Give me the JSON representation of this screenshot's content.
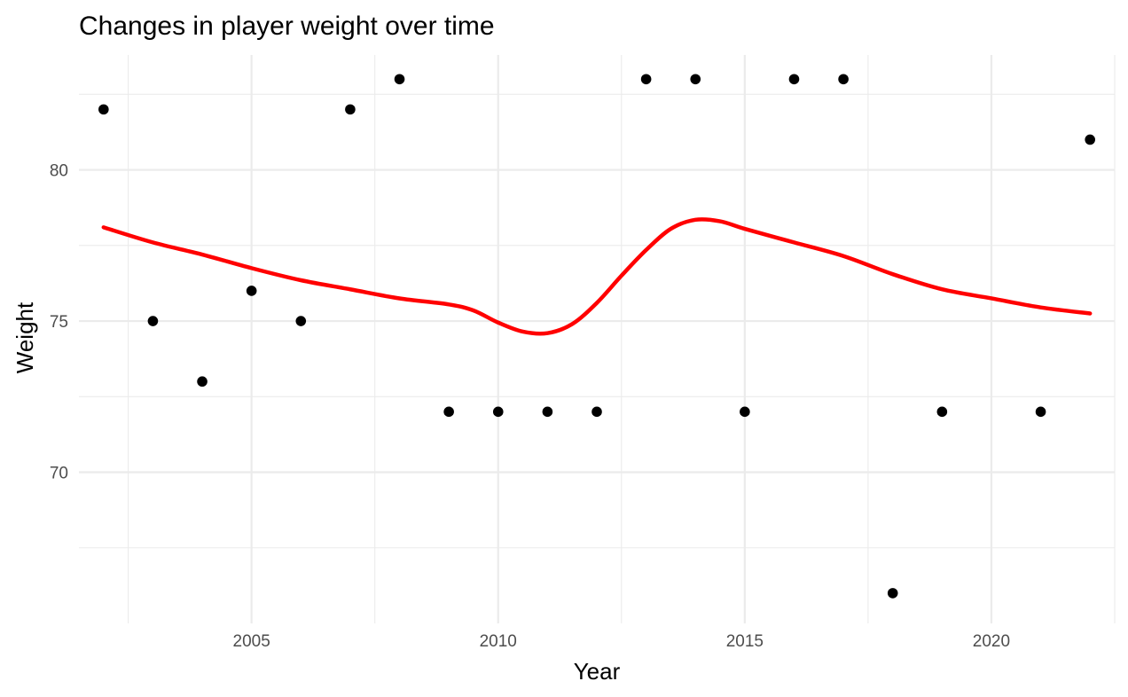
{
  "chart_data": {
    "type": "scatter",
    "title": "Changes in player weight over time",
    "xlabel": "Year",
    "ylabel": "Weight",
    "xlim": [
      2001.5,
      2022.5
    ],
    "ylim": [
      65.0,
      83.8
    ],
    "x_ticks": [
      2005,
      2010,
      2015,
      2020
    ],
    "y_ticks": [
      70,
      75,
      80
    ],
    "x_minor_ticks": [
      2002.5,
      2007.5,
      2012.5,
      2017.5,
      2022.5
    ],
    "y_minor_ticks": [
      67.5,
      72.5,
      77.5,
      82.5
    ],
    "grid": true,
    "point_color": "#000000",
    "points": [
      {
        "x": 2002,
        "y": 82
      },
      {
        "x": 2003,
        "y": 75
      },
      {
        "x": 2004,
        "y": 73
      },
      {
        "x": 2005,
        "y": 76
      },
      {
        "x": 2006,
        "y": 75
      },
      {
        "x": 2007,
        "y": 82
      },
      {
        "x": 2008,
        "y": 83
      },
      {
        "x": 2009,
        "y": 72
      },
      {
        "x": 2010,
        "y": 72
      },
      {
        "x": 2011,
        "y": 72
      },
      {
        "x": 2012,
        "y": 72
      },
      {
        "x": 2013,
        "y": 83
      },
      {
        "x": 2014,
        "y": 83
      },
      {
        "x": 2015,
        "y": 72
      },
      {
        "x": 2016,
        "y": 83
      },
      {
        "x": 2017,
        "y": 83
      },
      {
        "x": 2018,
        "y": 66
      },
      {
        "x": 2019,
        "y": 72
      },
      {
        "x": 2021,
        "y": 72
      },
      {
        "x": 2022,
        "y": 81
      }
    ],
    "trend": {
      "color": "#ff0000",
      "points": [
        {
          "x": 2002,
          "y": 78.1
        },
        {
          "x": 2003,
          "y": 77.6
        },
        {
          "x": 2004,
          "y": 77.2
        },
        {
          "x": 2005,
          "y": 76.75
        },
        {
          "x": 2006,
          "y": 76.35
        },
        {
          "x": 2007,
          "y": 76.05
        },
        {
          "x": 2008,
          "y": 75.75
        },
        {
          "x": 2009,
          "y": 75.55
        },
        {
          "x": 2009.5,
          "y": 75.35
        },
        {
          "x": 2010,
          "y": 74.95
        },
        {
          "x": 2010.5,
          "y": 74.65
        },
        {
          "x": 2011,
          "y": 74.6
        },
        {
          "x": 2011.5,
          "y": 74.9
        },
        {
          "x": 2012,
          "y": 75.6
        },
        {
          "x": 2012.5,
          "y": 76.5
        },
        {
          "x": 2013,
          "y": 77.35
        },
        {
          "x": 2013.5,
          "y": 78.05
        },
        {
          "x": 2014,
          "y": 78.35
        },
        {
          "x": 2014.5,
          "y": 78.3
        },
        {
          "x": 2015,
          "y": 78.05
        },
        {
          "x": 2016,
          "y": 77.6
        },
        {
          "x": 2017,
          "y": 77.15
        },
        {
          "x": 2018,
          "y": 76.55
        },
        {
          "x": 2019,
          "y": 76.05
        },
        {
          "x": 2020,
          "y": 75.75
        },
        {
          "x": 2021,
          "y": 75.45
        },
        {
          "x": 2022,
          "y": 75.25
        }
      ]
    }
  }
}
